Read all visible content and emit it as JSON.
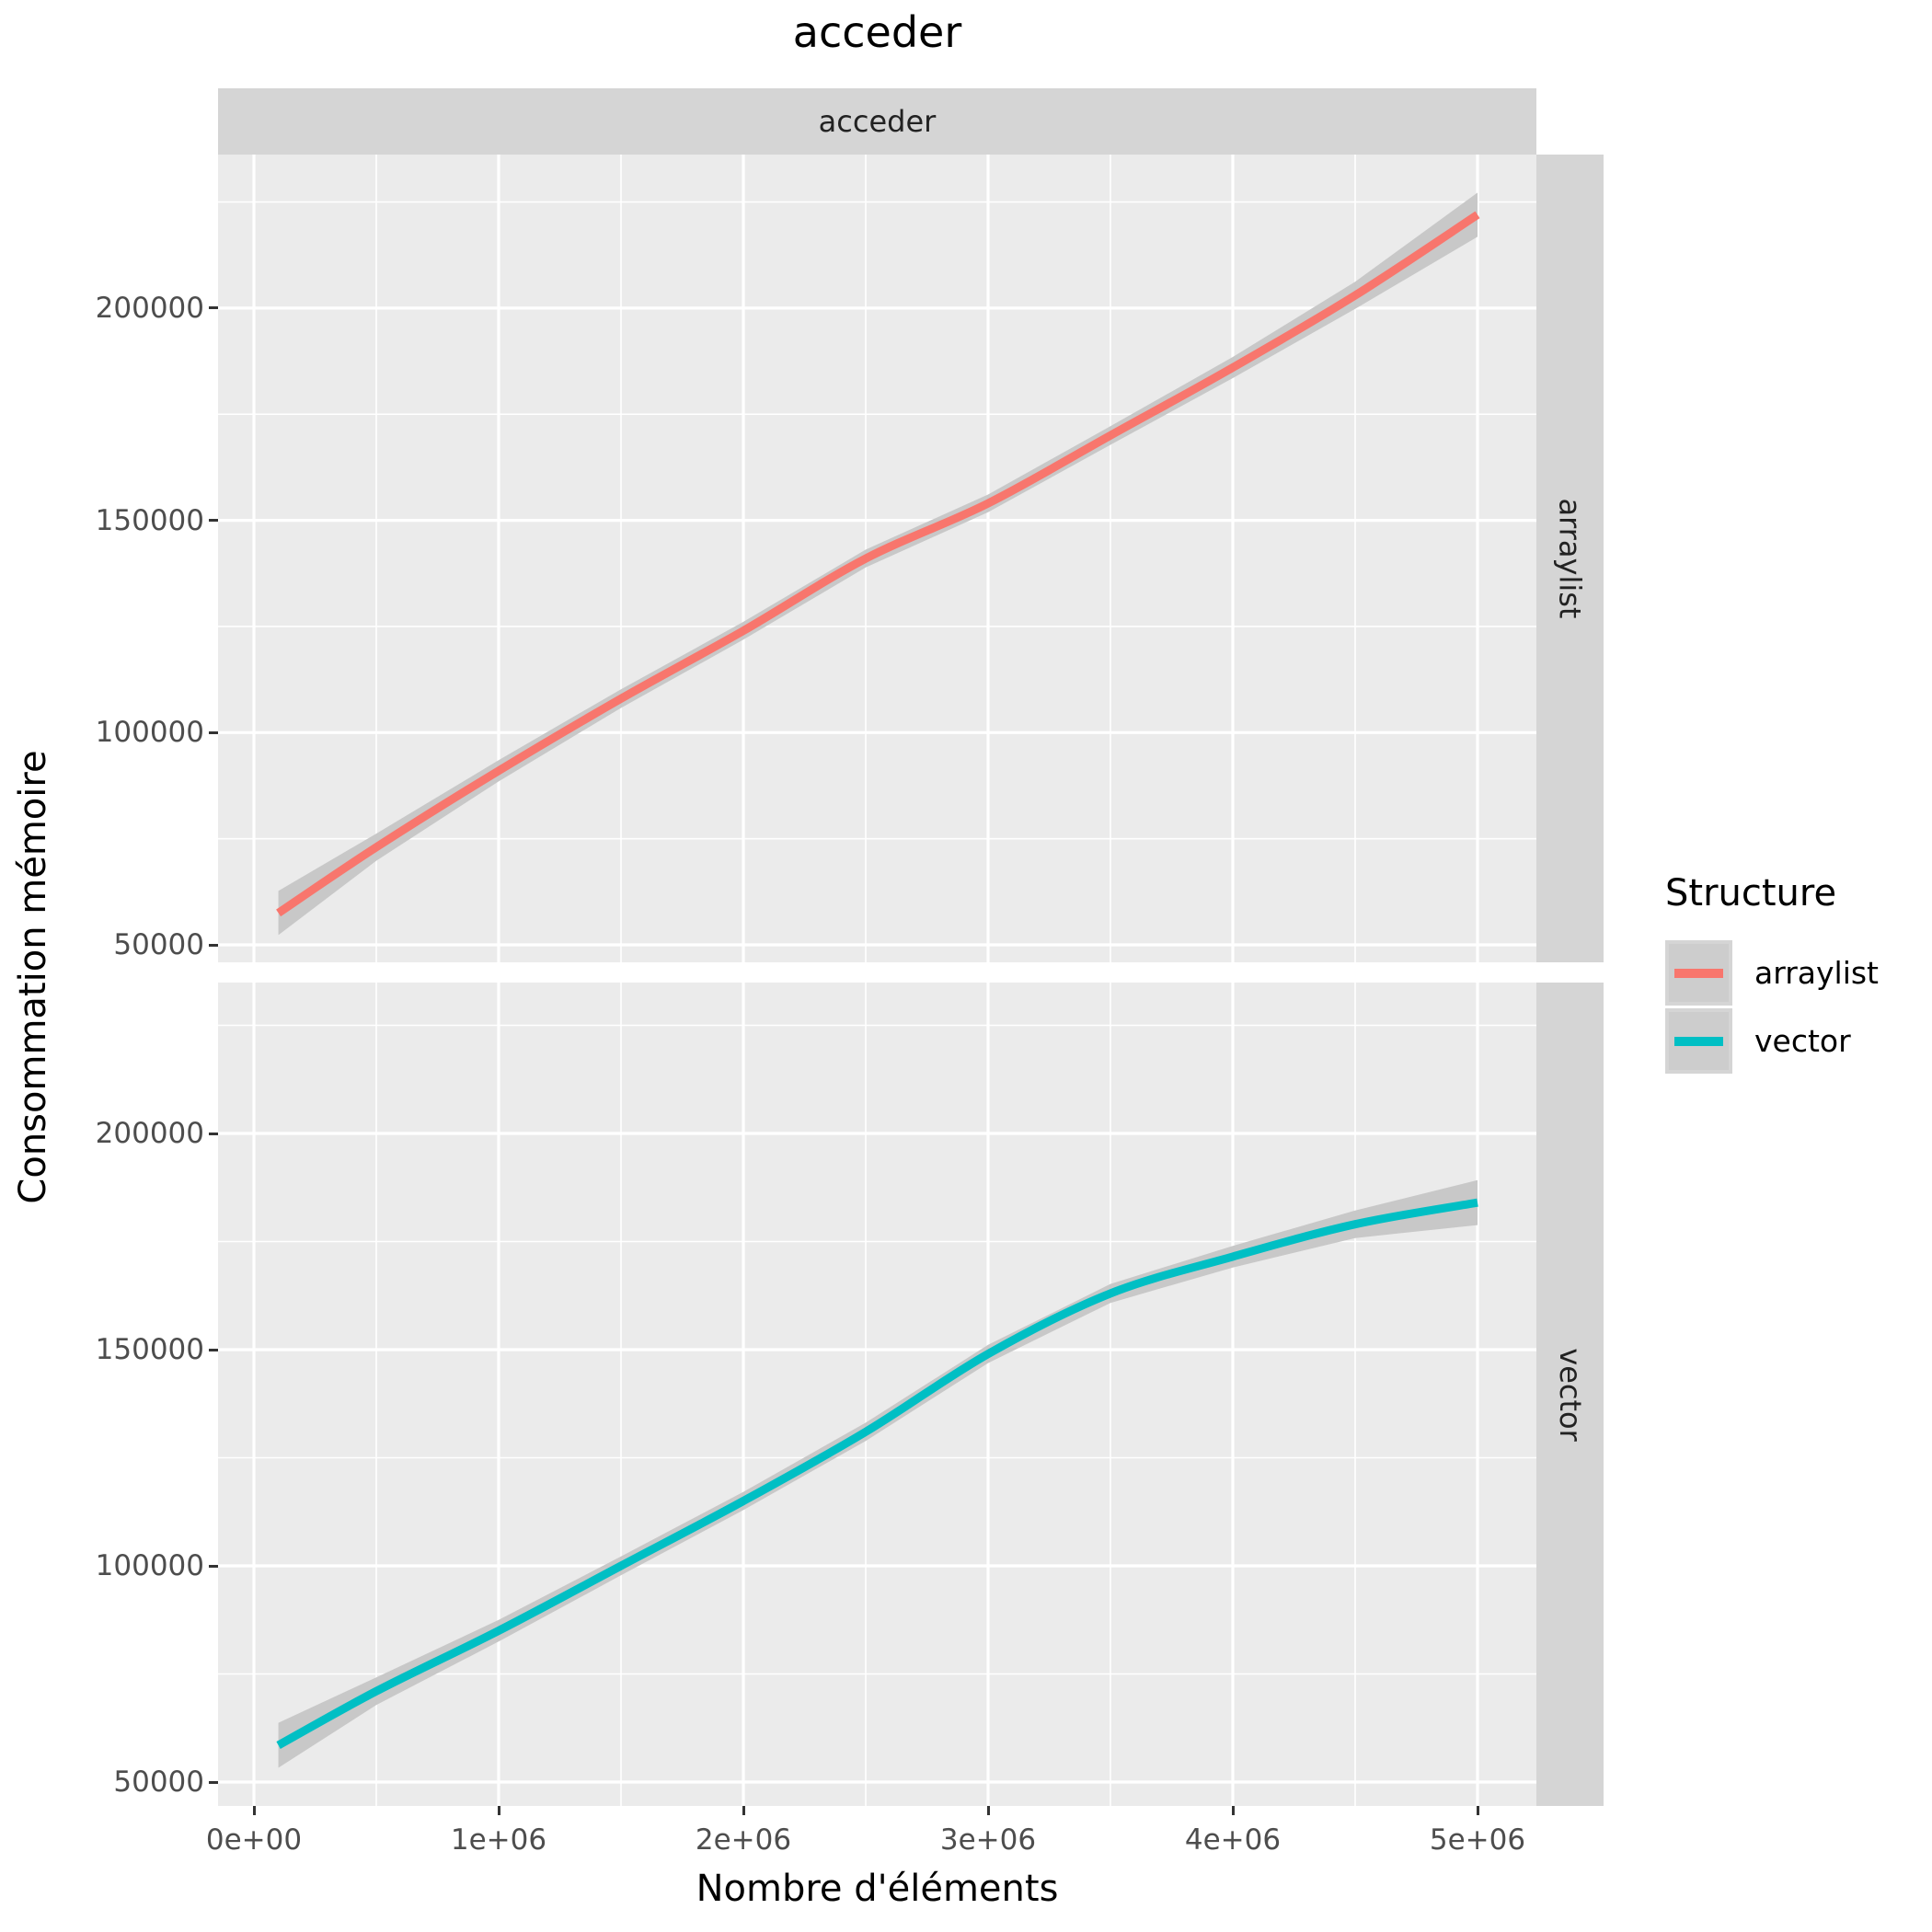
{
  "title": "acceder",
  "facet_strip_top": "acceder",
  "facet_strips_right": [
    "arraylist",
    "vector"
  ],
  "x_axis": {
    "label": "Nombre d'éléments",
    "tick_labels": [
      "0e+00",
      "1e+06",
      "2e+06",
      "3e+06",
      "4e+06",
      "5e+06"
    ],
    "tick_values": [
      0,
      1000000,
      2000000,
      3000000,
      4000000,
      5000000
    ]
  },
  "y_axis": {
    "label": "Consommation mémoire",
    "tick_labels": [
      "50000",
      "100000",
      "150000",
      "200000"
    ],
    "tick_values": [
      50000,
      100000,
      150000,
      200000
    ]
  },
  "legend": {
    "title": "Structure",
    "entries": [
      {
        "label": "arraylist",
        "color": "#F8766D"
      },
      {
        "label": "vector",
        "color": "#00BFC4"
      }
    ]
  },
  "colors": {
    "panel_background": "#EBEBEB",
    "strip_background": "#D5D5D5",
    "gridline": "#FFFFFF",
    "ci_ribbon": "#C8C8C8",
    "tick_text": "#4D4D4D",
    "arraylist_line": "#F8766D",
    "vector_line": "#00BFC4"
  },
  "chart_data": {
    "type": "line",
    "title": "acceder",
    "xlabel": "Nombre d'éléments",
    "ylabel": "Consommation mémoire",
    "xlim": [
      0,
      5000000
    ],
    "ylim": [
      46000,
      235000
    ],
    "grid": "on",
    "legend_position": "right",
    "x": [
      100000,
      500000,
      1000000,
      1500000,
      2000000,
      2500000,
      3000000,
      3500000,
      4000000,
      4500000,
      5000000
    ],
    "facets": [
      {
        "name": "arraylist",
        "series": "arraylist",
        "color": "#F8766D",
        "values": [
          57500,
          73000,
          91000,
          108000,
          124000,
          141000,
          154000,
          170000,
          186000,
          203000,
          222000
        ],
        "ci_halfwidth": [
          5200,
          3200,
          2500,
          2200,
          2100,
          2100,
          2100,
          2200,
          2500,
          3200,
          5200
        ]
      },
      {
        "name": "vector",
        "series": "vector",
        "color": "#00BFC4",
        "values": [
          58500,
          71000,
          85000,
          100000,
          115000,
          131000,
          149000,
          163000,
          171500,
          179000,
          184000
        ],
        "ci_halfwidth": [
          5200,
          3200,
          2500,
          2200,
          2100,
          2100,
          2100,
          2200,
          2500,
          3200,
          5200
        ]
      }
    ]
  }
}
